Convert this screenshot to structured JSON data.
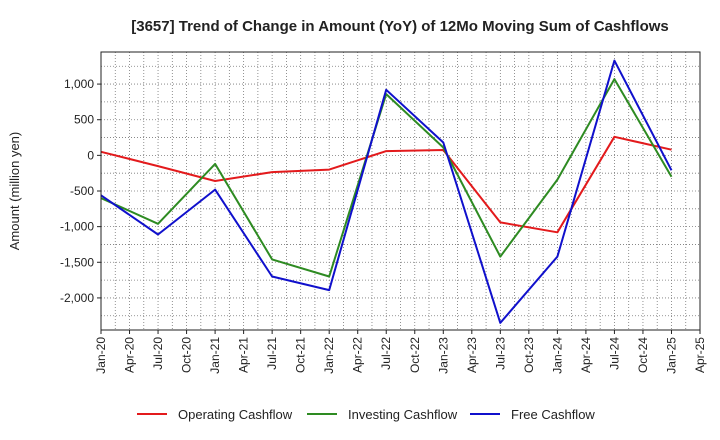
{
  "chart_data": {
    "type": "line",
    "title": "[3657]  Trend of Change in Amount (YoY) of 12Mo Moving Sum of Cashflows",
    "ylabel": "Amount (million yen)",
    "xlabel": "",
    "ylim": [
      -2450,
      1450
    ],
    "yticks": [
      1000,
      500,
      0,
      -500,
      -1000,
      -1500,
      -2000
    ],
    "ytick_labels": [
      "1,000",
      "500",
      "0",
      "-500",
      "-1,000",
      "-1,500",
      "-2,000"
    ],
    "x_tick_labels": [
      "Jan-20",
      "Apr-20",
      "Jul-20",
      "Oct-20",
      "Jan-21",
      "Apr-21",
      "Jul-21",
      "Oct-21",
      "Jan-22",
      "Apr-22",
      "Jul-22",
      "Oct-22",
      "Jan-23",
      "Apr-23",
      "Jul-23",
      "Oct-23",
      "Jan-24",
      "Apr-24",
      "Jul-24",
      "Oct-24",
      "Jan-25",
      "Apr-25"
    ],
    "x_points": [
      "Jan-20",
      "Jul-20",
      "Jan-21",
      "Jul-21",
      "Jan-22",
      "Jul-22",
      "Jan-23",
      "Jul-23",
      "Jan-24",
      "Jul-24",
      "Jan-25"
    ],
    "grid": true,
    "legend_position": "bottom",
    "series": [
      {
        "name": "Operating Cashflow",
        "color": "#e31a1c",
        "values": [
          50,
          -150,
          -360,
          -235,
          -200,
          60,
          75,
          -940,
          -1080,
          260,
          80
        ]
      },
      {
        "name": "Investing Cashflow",
        "color": "#2e8b22",
        "values": [
          -600,
          -960,
          -120,
          -1460,
          -1700,
          860,
          110,
          -1420,
          -340,
          1070,
          -300
        ]
      },
      {
        "name": "Free Cashflow",
        "color": "#1010cc",
        "values": [
          -560,
          -1110,
          -480,
          -1700,
          -1890,
          920,
          180,
          -2350,
          -1420,
          1330,
          -210
        ]
      }
    ]
  }
}
